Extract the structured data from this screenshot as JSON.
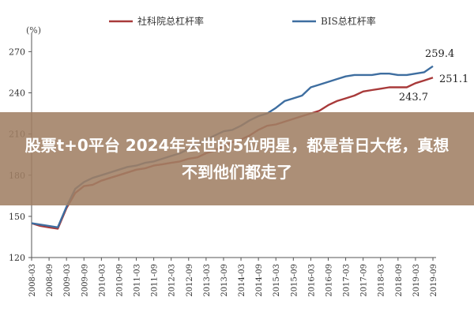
{
  "overlay": {
    "headline": "股票t+0平台 2024年去世的5位明星，都是昔日大佬，真想不到他们都走了"
  },
  "chart_data": {
    "type": "line",
    "ylabel": "(%)",
    "ylim": [
      120,
      280
    ],
    "yticks": [
      120,
      150,
      180,
      210,
      240,
      270
    ],
    "grid": false,
    "legend_position": "top",
    "x": [
      "2008-03",
      "2008-06",
      "2008-09",
      "2008-12",
      "2009-03",
      "2009-06",
      "2009-09",
      "2009-12",
      "2010-03",
      "2010-06",
      "2010-09",
      "2010-12",
      "2011-03",
      "2011-06",
      "2011-09",
      "2011-12",
      "2012-03",
      "2012-06",
      "2012-09",
      "2012-12",
      "2013-03",
      "2013-06",
      "2013-09",
      "2013-12",
      "2014-03",
      "2014-06",
      "2014-09",
      "2014-12",
      "2015-03",
      "2015-06",
      "2015-09",
      "2015-12",
      "2016-03",
      "2016-06",
      "2016-09",
      "2016-12",
      "2017-03",
      "2017-06",
      "2017-09",
      "2017-12",
      "2018-03",
      "2018-06",
      "2018-09",
      "2018-12",
      "2019-03",
      "2019-06",
      "2019-09"
    ],
    "xtick_labels": [
      "2008-03",
      "2008-09",
      "2009-03",
      "2009-09",
      "2010-03",
      "2010-09",
      "2011-03",
      "2011-09",
      "2012-03",
      "2012-09",
      "2013-03",
      "2013-09",
      "2014-03",
      "2014-09",
      "2015-03",
      "2015-09",
      "2016-03",
      "2016-09",
      "2017-03",
      "2017-09",
      "2018-03",
      "2018-09",
      "2019-03",
      "2019-09"
    ],
    "series": [
      {
        "name": "社科院总杠杆率",
        "color": "#a83a3a",
        "values": [
          145,
          143,
          142,
          141,
          156,
          167,
          172,
          173,
          176,
          178,
          180,
          182,
          184,
          185,
          187,
          188,
          189,
          190,
          192,
          193,
          196,
          198,
          201,
          204,
          206,
          209,
          213,
          216,
          217,
          219,
          221,
          223,
          225,
          227,
          231,
          234,
          236,
          238,
          241,
          242,
          243,
          244,
          244,
          244,
          247,
          249,
          251.1
        ]
      },
      {
        "name": "BIS总杠杆率",
        "color": "#3e6ea0",
        "values": [
          145,
          144,
          143,
          142,
          157,
          170,
          175,
          178,
          180,
          182,
          184,
          186,
          187,
          189,
          190,
          192,
          194,
          196,
          199,
          202,
          206,
          209,
          212,
          213,
          216,
          220,
          223,
          225,
          229,
          234,
          236,
          238,
          244,
          246,
          248,
          250,
          252,
          253,
          253,
          253,
          254,
          254,
          253,
          253,
          254,
          255,
          259.4
        ]
      }
    ],
    "annotations": [
      {
        "text": "259.4",
        "x": "2019-09",
        "y": 259.4,
        "series": "BIS总杠杆率"
      },
      {
        "text": "251.1",
        "x": "2019-09",
        "y": 251.1,
        "series": "社科院总杠杆率"
      },
      {
        "text": "243.7",
        "x": "2018-12",
        "y": 243.7,
        "series": "社科院总杠杆率"
      }
    ]
  }
}
